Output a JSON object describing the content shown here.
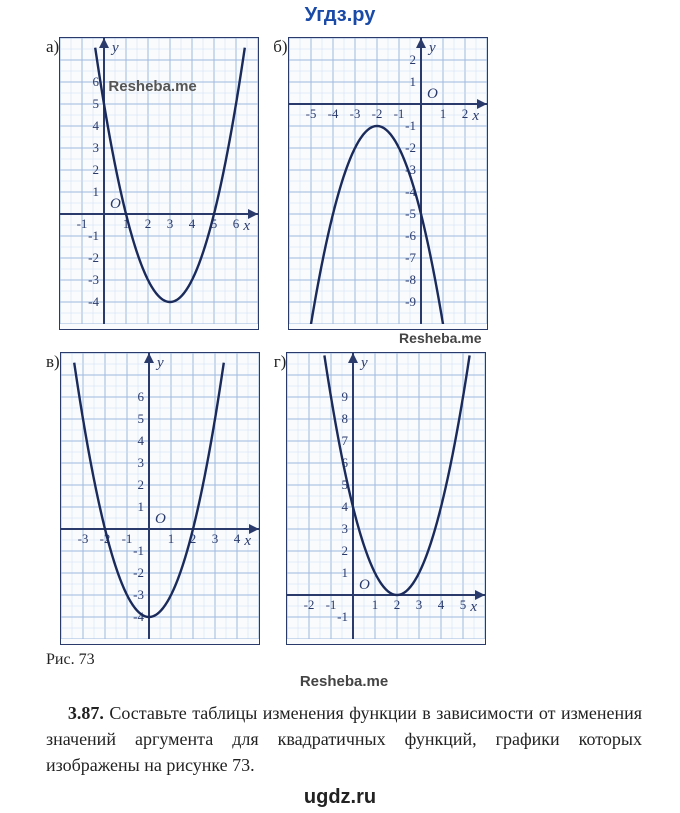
{
  "header": {
    "site": "Угдз.ру"
  },
  "chart_a": {
    "type": "parabola",
    "label": "а)",
    "cell": 22,
    "x_cells": [
      -2,
      7
    ],
    "y_cells": [
      -5,
      8
    ],
    "x_axis_y": 0,
    "y_axis_x": 0,
    "x_ticks": [
      -1,
      1,
      2,
      3,
      4,
      5,
      6
    ],
    "y_ticks": [
      -4,
      -3,
      -2,
      -1,
      1,
      2,
      3,
      4,
      5,
      6
    ],
    "origin_label": "O",
    "x_axis_label": "x",
    "y_axis_label": "y",
    "vertex": [
      3,
      -4
    ],
    "a": 1,
    "t_range": [
      -3.4,
      3.4
    ],
    "watermark": "Resheba.me",
    "colors": {
      "border": "#2a3a6a",
      "grid": "#9fb8e0",
      "grid_minor": "#d0ddf5",
      "axis": "#2a3a6a",
      "curve": "#1a2a5a",
      "bg": "#f9fbfd"
    }
  },
  "chart_b": {
    "type": "parabola",
    "label": "б)",
    "cell": 22,
    "x_cells": [
      -6,
      3
    ],
    "y_cells": [
      -10,
      3
    ],
    "x_axis_y": 0,
    "y_axis_x": 0,
    "x_ticks": [
      -5,
      -4,
      -3,
      -2,
      -1,
      1,
      2
    ],
    "y_ticks": [
      -9,
      -8,
      -7,
      -6,
      -5,
      -4,
      -3,
      -2,
      -1,
      1,
      2
    ],
    "origin_label": "O",
    "x_axis_label": "x",
    "y_axis_label": "y",
    "vertex": [
      -2,
      -1
    ],
    "a": -1,
    "t_range": [
      -3.05,
      3.05
    ],
    "colors": {
      "border": "#2a3a6a",
      "grid": "#9fb8e0",
      "grid_minor": "#d0ddf5",
      "axis": "#2a3a6a",
      "curve": "#1a2a5a",
      "bg": "#f9fbfd"
    }
  },
  "chart_b_watermark": "Resheba.me",
  "chart_c": {
    "type": "parabola",
    "label": "в)",
    "cell": 22,
    "x_cells": [
      -4,
      5
    ],
    "y_cells": [
      -5,
      8
    ],
    "x_axis_y": 0,
    "y_axis_x": 0,
    "x_ticks": [
      -3,
      -2,
      -1,
      1,
      2,
      3,
      4
    ],
    "y_ticks": [
      -4,
      -3,
      -2,
      -1,
      1,
      2,
      3,
      4,
      5,
      6
    ],
    "origin_label": "O",
    "x_axis_label": "x",
    "y_axis_label": "y",
    "vertex": [
      0,
      -4
    ],
    "a": 1,
    "t_range": [
      -3.4,
      3.4
    ],
    "colors": {
      "border": "#2a3a6a",
      "grid": "#9fb8e0",
      "grid_minor": "#d0ddf5",
      "axis": "#2a3a6a",
      "curve": "#1a2a5a",
      "bg": "#f9fbfd"
    }
  },
  "chart_d": {
    "type": "parabola",
    "label": "г)",
    "cell": 22,
    "x_cells": [
      -3,
      6
    ],
    "y_cells": [
      -2,
      11
    ],
    "x_axis_y": 0,
    "y_axis_x": 0,
    "x_ticks": [
      -2,
      -1,
      1,
      2,
      3,
      4,
      5
    ],
    "y_ticks": [
      -1,
      1,
      2,
      3,
      4,
      5,
      6,
      7,
      8,
      9
    ],
    "origin_label": "O",
    "x_axis_label": "x",
    "y_axis_label": "y",
    "vertex": [
      2,
      0
    ],
    "a": 1,
    "t_range": [
      -3.3,
      3.3
    ],
    "colors": {
      "border": "#2a3a6a",
      "grid": "#9fb8e0",
      "grid_minor": "#d0ddf5",
      "axis": "#2a3a6a",
      "curve": "#1a2a5a",
      "bg": "#f9fbfd"
    }
  },
  "figure_label": "Рис. 73",
  "mid_watermark": "Resheba.me",
  "task": {
    "number": "3.87.",
    "text": "Составьте таблицы изменения функции в зависимости от изменения значений аргумента для квадратичных функций, графики которых изображены на рисунке 73."
  },
  "footer": {
    "site": "ugdz.ru"
  }
}
